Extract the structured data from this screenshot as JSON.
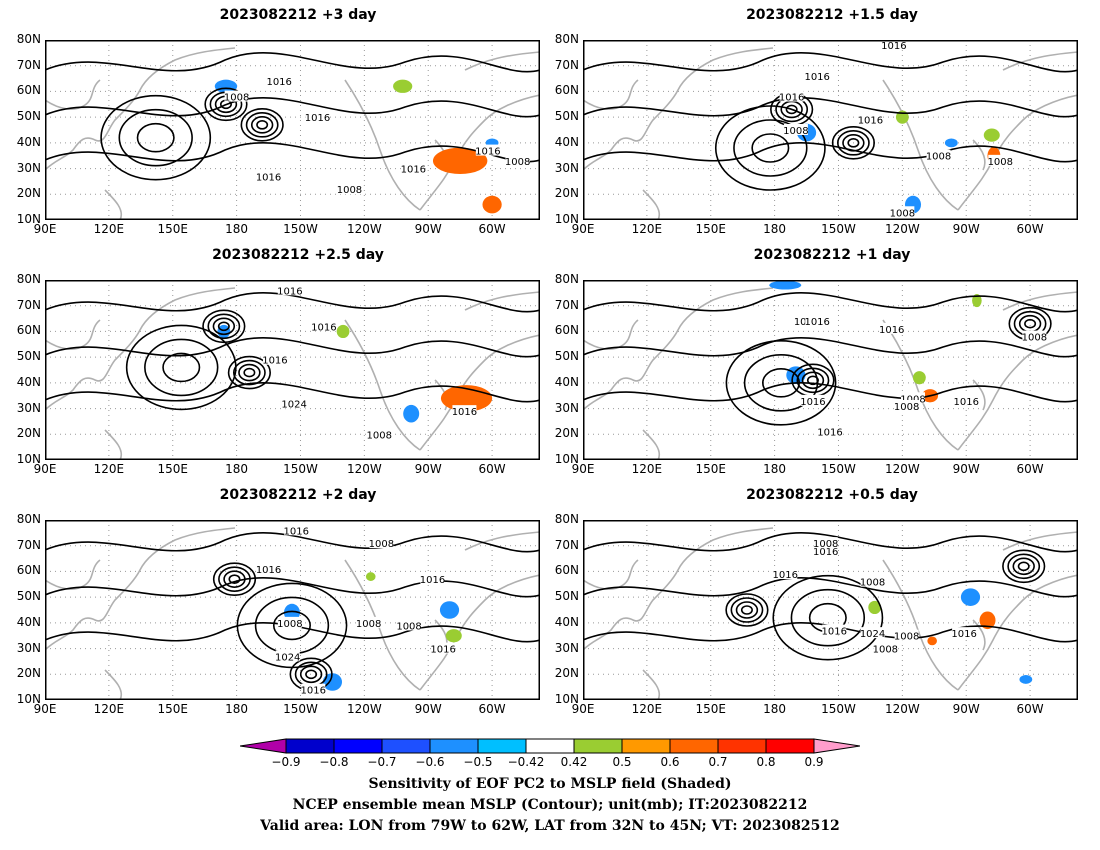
{
  "panels": [
    {
      "id": "p1",
      "title": "2023082212 +3 day",
      "lows": [
        [
          185,
          55
        ],
        [
          168,
          47
        ]
      ],
      "highs": [
        [
          218,
          42
        ]
      ],
      "blue": [
        [
          185,
          62,
          7,
          3
        ],
        [
          60,
          40,
          4,
          2
        ]
      ],
      "green": [
        [
          102,
          62,
          6,
          3
        ]
      ],
      "orange": [
        [
          75,
          33,
          17,
          6
        ],
        [
          60,
          16,
          6,
          4
        ]
      ],
      "labels": [
        [
          "1008",
          48,
          33
        ],
        [
          "1008",
          180,
          58
        ],
        [
          "1016",
          200,
          64
        ],
        [
          "1016",
          142,
          50
        ],
        [
          "1016",
          165,
          27
        ],
        [
          "1008",
          127,
          22
        ],
        [
          "1016",
          97,
          30
        ],
        [
          "1016",
          62,
          37
        ]
      ]
    },
    {
      "id": "p2",
      "title": "2023082212 +1.5 day",
      "lows": [
        [
          172,
          53
        ],
        [
          143,
          40
        ]
      ],
      "highs": [
        [
          182,
          38
        ]
      ],
      "blue": [
        [
          165,
          44,
          6,
          4
        ],
        [
          115,
          16,
          5,
          4
        ],
        [
          97,
          40,
          4,
          2
        ]
      ],
      "green": [
        [
          120,
          50,
          4,
          3
        ],
        [
          78,
          43,
          5,
          3
        ]
      ],
      "orange": [
        [
          77,
          35,
          4,
          4
        ]
      ],
      "labels": [
        [
          "1016",
          124,
          78
        ],
        [
          "1016",
          160,
          66
        ],
        [
          "1016",
          172,
          58
        ],
        [
          "1016",
          135,
          49
        ],
        [
          "1008",
          170,
          45
        ],
        [
          "1008",
          103,
          35
        ],
        [
          "1008",
          74,
          33
        ],
        [
          "1008",
          120,
          13
        ]
      ]
    },
    {
      "id": "p3",
      "title": "2023082212 +2.5 day",
      "lows": [
        [
          186,
          62
        ],
        [
          174,
          44
        ]
      ],
      "highs": [
        [
          206,
          46
        ]
      ],
      "blue": [
        [
          186,
          60,
          4,
          3
        ],
        [
          98,
          28,
          5,
          4
        ]
      ],
      "green": [
        [
          130,
          60,
          4,
          3
        ]
      ],
      "orange": [
        [
          72,
          34,
          16,
          6
        ]
      ],
      "labels": [
        [
          "1016",
          155,
          76
        ],
        [
          "1016",
          221,
          62
        ],
        [
          "1016",
          198,
          49
        ],
        [
          "1024",
          207,
          32
        ],
        [
          "1016",
          73,
          29
        ],
        [
          "1008",
          113,
          20
        ]
      ]
    },
    {
      "id": "p4",
      "title": "2023082212 +1 day",
      "lows": [
        [
          162,
          41
        ],
        [
          60,
          63
        ]
      ],
      "highs": [
        [
          177,
          40
        ]
      ],
      "blue": [
        [
          170,
          43,
          6,
          4
        ],
        [
          175,
          78,
          10,
          2
        ]
      ],
      "green": [
        [
          112,
          42,
          4,
          3
        ],
        [
          85,
          72,
          3,
          3
        ]
      ],
      "orange": [
        [
          107,
          35,
          5,
          3
        ]
      ],
      "labels": [
        [
          "1016",
          165,
          64
        ],
        [
          "1016",
          160,
          64
        ],
        [
          "1016",
          125,
          61
        ],
        [
          "1008",
          58,
          58
        ],
        [
          "1016",
          162,
          33
        ],
        [
          "1008",
          115,
          34
        ],
        [
          "1016",
          90,
          33
        ],
        [
          "1016",
          154,
          21
        ],
        [
          "1008",
          118,
          31
        ]
      ]
    },
    {
      "id": "p5",
      "title": "2023082212 +2 day",
      "lows": [
        [
          181,
          57
        ],
        [
          145,
          20
        ]
      ],
      "highs": [
        [
          154,
          39
        ]
      ],
      "blue": [
        [
          154,
          44,
          5,
          4
        ],
        [
          80,
          45,
          6,
          4
        ],
        [
          135,
          17,
          6,
          4
        ]
      ],
      "green": [
        [
          78,
          35,
          5,
          3
        ],
        [
          117,
          58,
          3,
          2
        ]
      ],
      "orange": [],
      "labels": [
        [
          "1016",
          152,
          76
        ],
        [
          "1008",
          248,
          71
        ],
        [
          "1016",
          165,
          61
        ],
        [
          "1016",
          88,
          57
        ],
        [
          "1008",
          155,
          40
        ],
        [
          "1024",
          156,
          27
        ],
        [
          "1016",
          144,
          14
        ],
        [
          "1008",
          99,
          39
        ],
        [
          "1008",
          118,
          40
        ],
        [
          "1016",
          83,
          30
        ]
      ]
    },
    {
      "id": "p6",
      "title": "2023082212 +0.5 day",
      "lows": [
        [
          63,
          62
        ],
        [
          193,
          45
        ]
      ],
      "highs": [
        [
          155,
          42
        ]
      ],
      "blue": [
        [
          88,
          50,
          6,
          4
        ],
        [
          62,
          18,
          4,
          2
        ]
      ],
      "green": [
        [
          133,
          46,
          4,
          3
        ]
      ],
      "orange": [
        [
          80,
          41,
          5,
          4
        ],
        [
          106,
          33,
          3,
          2
        ]
      ],
      "labels": [
        [
          "1016",
          156,
          68
        ],
        [
          "1016",
          185,
          59
        ],
        [
          "1008",
          204,
          71
        ],
        [
          "1008",
          226,
          56
        ],
        [
          "1016",
          152,
          37
        ],
        [
          "1024",
          134,
          36
        ],
        [
          "1008",
          118,
          35
        ],
        [
          "1016",
          91,
          36
        ],
        [
          "1008",
          232,
          30
        ]
      ]
    }
  ],
  "lat_labels": [
    "80N",
    "70N",
    "60N",
    "50N",
    "40N",
    "30N",
    "20N",
    "10N"
  ],
  "lon_labels": [
    "90E",
    "120E",
    "150E",
    "180",
    "150W",
    "120W",
    "90W",
    "60W"
  ],
  "colorbar": {
    "colors": [
      "#b000a8",
      "#0000cc",
      "#0000ff",
      "#1e50ff",
      "#1e90ff",
      "#00bfff",
      "#ffffff",
      "#9acd32",
      "#ff9900",
      "#ff6600",
      "#ff3300",
      "#ff0000",
      "#ff9dcc"
    ],
    "labels": [
      "−0.9",
      "−0.8",
      "−0.7",
      "−0.6",
      "−0.5",
      "−0.42",
      "0.42",
      "0.5",
      "0.6",
      "0.7",
      "0.8",
      "0.9"
    ]
  },
  "footer": {
    "line1": "Sensitivity of EOF PC2 to MSLP field (Shaded)",
    "line2": "NCEP ensemble mean MSLP (Contour); unit(mb); IT:2023082212",
    "line3": "Valid area: LON from 79W to 62W, LAT from 32N to 45N; VT: 2023082512"
  }
}
